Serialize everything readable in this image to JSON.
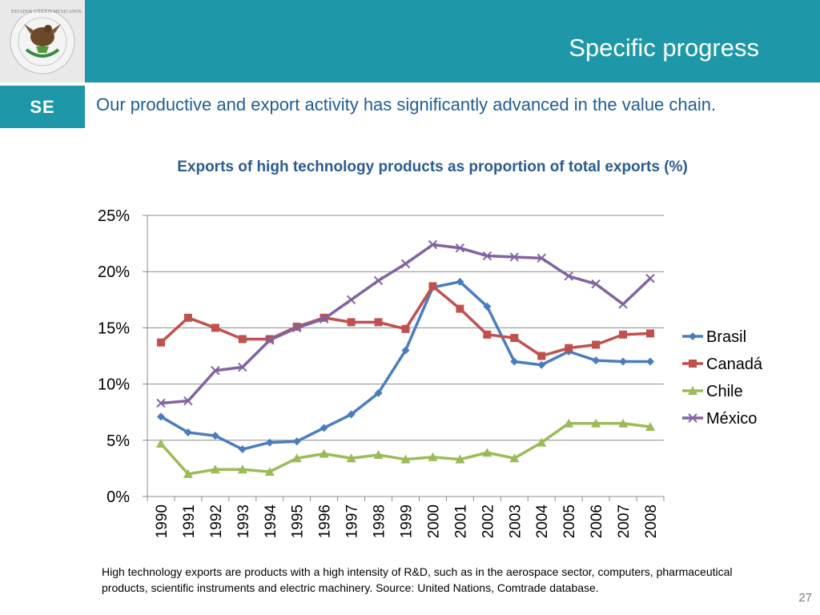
{
  "header": {
    "title": "Specific progress",
    "logo_icon": "mexican-coat-of-arms-seal-icon",
    "logo_text": "ESTADOS UNIDOS MEXICANOS",
    "agency_label": "SE",
    "accent_color": "#1e98a8"
  },
  "subtitle": "Our productive and export activity has significantly advanced in the value chain.",
  "chart_data": {
    "type": "line",
    "title": "Exports of high technology products as proportion of total exports (%)",
    "x": [
      "1990",
      "1991",
      "1992",
      "1993",
      "1994",
      "1995",
      "1996",
      "1997",
      "1998",
      "1999",
      "2000",
      "2001",
      "2002",
      "2003",
      "2004",
      "2005",
      "2006",
      "2007",
      "2008"
    ],
    "ylim": [
      0,
      25
    ],
    "yticks": [
      "0%",
      "5%",
      "10%",
      "15%",
      "20%",
      "25%"
    ],
    "grid": true,
    "legend_placement": "right",
    "series": [
      {
        "name": "Brasil",
        "color": "#4a7dbd",
        "marker": "diamond",
        "values": [
          7.1,
          5.7,
          5.4,
          4.2,
          4.8,
          4.9,
          6.1,
          7.3,
          9.2,
          13.0,
          18.6,
          19.1,
          16.9,
          12.0,
          11.7,
          12.9,
          12.1,
          12.0,
          12.0
        ]
      },
      {
        "name": "Canadá",
        "color": "#c0504d",
        "marker": "square",
        "values": [
          13.7,
          15.9,
          15.0,
          14.0,
          14.0,
          15.1,
          15.9,
          15.5,
          15.5,
          14.9,
          18.7,
          16.7,
          14.4,
          14.1,
          12.5,
          13.2,
          13.5,
          14.4,
          14.5
        ]
      },
      {
        "name": "Chile",
        "color": "#9bbb59",
        "marker": "triangle",
        "values": [
          4.7,
          2.0,
          2.4,
          2.4,
          2.2,
          3.4,
          3.8,
          3.4,
          3.7,
          3.3,
          3.5,
          3.3,
          3.9,
          3.4,
          4.8,
          6.5,
          6.5,
          6.5,
          6.2
        ]
      },
      {
        "name": "México",
        "color": "#8064a2",
        "marker": "x",
        "values": [
          8.3,
          8.5,
          11.2,
          11.5,
          13.9,
          15.0,
          15.8,
          17.5,
          19.2,
          20.7,
          22.4,
          22.1,
          21.4,
          21.3,
          21.2,
          19.6,
          18.9,
          17.1,
          19.4
        ]
      }
    ]
  },
  "footnote": "High technology exports are products with a high intensity of R&D, such as in the aerospace sector, computers, pharmaceutical products, scientific instruments and electric machinery. Source: United Nations, Comtrade database.",
  "page_number": "27"
}
